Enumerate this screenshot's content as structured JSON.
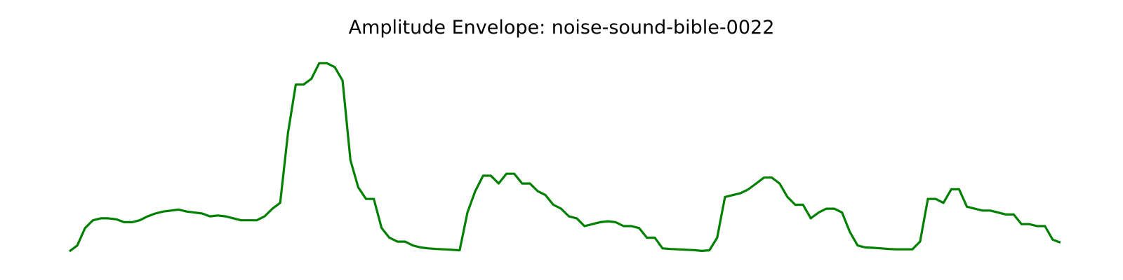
{
  "chart_data": {
    "type": "line",
    "title": "Amplitude Envelope: noise-sound-bible-0022",
    "xlabel": "",
    "ylabel": "",
    "axes_visible": false,
    "grid": false,
    "xlim": [
      0,
      130
    ],
    "ylim": [
      0,
      1
    ],
    "series": [
      {
        "color": "#008000",
        "values": [
          0.0,
          0.03,
          0.12,
          0.16,
          0.17,
          0.17,
          0.165,
          0.15,
          0.15,
          0.16,
          0.18,
          0.195,
          0.205,
          0.21,
          0.215,
          0.205,
          0.2,
          0.195,
          0.18,
          0.185,
          0.18,
          0.17,
          0.16,
          0.16,
          0.16,
          0.18,
          0.22,
          0.25,
          0.61,
          0.86,
          0.86,
          0.89,
          0.97,
          0.97,
          0.95,
          0.88,
          0.47,
          0.33,
          0.27,
          0.27,
          0.12,
          0.07,
          0.05,
          0.05,
          0.03,
          0.02,
          0.015,
          0.012,
          0.01,
          0.008,
          0.005,
          0.2,
          0.31,
          0.39,
          0.39,
          0.35,
          0.4,
          0.4,
          0.35,
          0.35,
          0.31,
          0.29,
          0.24,
          0.22,
          0.18,
          0.17,
          0.13,
          0.14,
          0.15,
          0.155,
          0.15,
          0.13,
          0.13,
          0.12,
          0.07,
          0.07,
          0.015,
          0.012,
          0.01,
          0.008,
          0.006,
          0.002,
          0.005,
          0.07,
          0.28,
          0.29,
          0.3,
          0.32,
          0.35,
          0.38,
          0.38,
          0.35,
          0.28,
          0.24,
          0.24,
          0.17,
          0.2,
          0.22,
          0.22,
          0.2,
          0.1,
          0.03,
          0.02,
          0.018,
          0.015,
          0.012,
          0.01,
          0.01,
          0.01,
          0.05,
          0.27,
          0.27,
          0.25,
          0.32,
          0.32,
          0.23,
          0.22,
          0.21,
          0.21,
          0.2,
          0.19,
          0.19,
          0.14,
          0.14,
          0.13,
          0.13,
          0.06,
          0.045
        ]
      }
    ]
  }
}
